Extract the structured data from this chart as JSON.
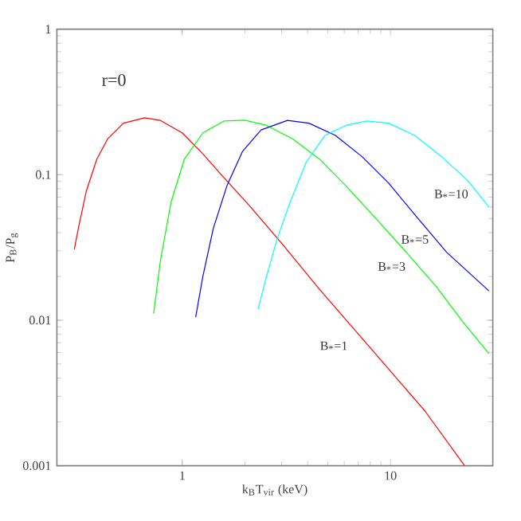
{
  "chart_data": {
    "type": "line",
    "log": "xy",
    "xlabel": "k$_{B}$T$_{vir}$ (keV)",
    "ylabel": "P$_{B}$/P$_{g}$",
    "xlim": [
      0.25,
      31
    ],
    "ylim": [
      0.001,
      1
    ],
    "xticks": [
      1,
      10
    ],
    "yticks": [
      0.001,
      0.01,
      0.1,
      1
    ],
    "marker": "none",
    "line_style": "solid",
    "series": [
      {
        "name": "B$_{*}$=1",
        "color": "#ff0000",
        "x": [
          0.303,
          0.317,
          0.346,
          0.389,
          0.438,
          0.522,
          0.66,
          0.786,
          1.0,
          1.256,
          1.59,
          2.13,
          3.03,
          4.56,
          8.2,
          14.7,
          22.7
        ],
        "values": [
          0.0306,
          0.0428,
          0.077,
          0.128,
          0.176,
          0.226,
          0.246,
          0.236,
          0.194,
          0.139,
          0.095,
          0.06,
          0.0333,
          0.0163,
          0.0062,
          0.00236,
          0.001
        ]
      },
      {
        "name": "B$_{*}$=3",
        "color": "#00ff00",
        "x": [
          0.729,
          0.786,
          0.884,
          1.024,
          1.256,
          1.59,
          2.0,
          2.54,
          3.4,
          4.56,
          6.1,
          8.2,
          11.6,
          16.6,
          22.2,
          29.7
        ],
        "values": [
          0.0111,
          0.0258,
          0.065,
          0.128,
          0.194,
          0.234,
          0.237,
          0.218,
          0.176,
          0.128,
          0.084,
          0.053,
          0.0306,
          0.017,
          0.0098,
          0.0059
        ]
      },
      {
        "name": "B$_{*}$=5",
        "color": "#0000ff",
        "x": [
          1.16,
          1.256,
          1.41,
          1.64,
          1.95,
          2.39,
          3.2,
          4.06,
          5.44,
          7.3,
          9.8,
          13.1,
          18.6,
          29.7
        ],
        "values": [
          0.0105,
          0.02,
          0.0428,
          0.084,
          0.145,
          0.203,
          0.236,
          0.226,
          0.186,
          0.133,
          0.0875,
          0.053,
          0.0293,
          0.0159
        ]
      },
      {
        "name": "B$_{*}$=10",
        "color": "#00ffff",
        "x": [
          2.31,
          2.54,
          2.85,
          3.3,
          3.94,
          4.84,
          6.1,
          7.7,
          9.8,
          13.1,
          17.6,
          23.5,
          29.7
        ],
        "values": [
          0.0119,
          0.02,
          0.036,
          0.065,
          0.122,
          0.186,
          0.218,
          0.234,
          0.226,
          0.186,
          0.133,
          0.0912,
          0.06
        ]
      }
    ],
    "annotations": [
      "r=0"
    ]
  }
}
